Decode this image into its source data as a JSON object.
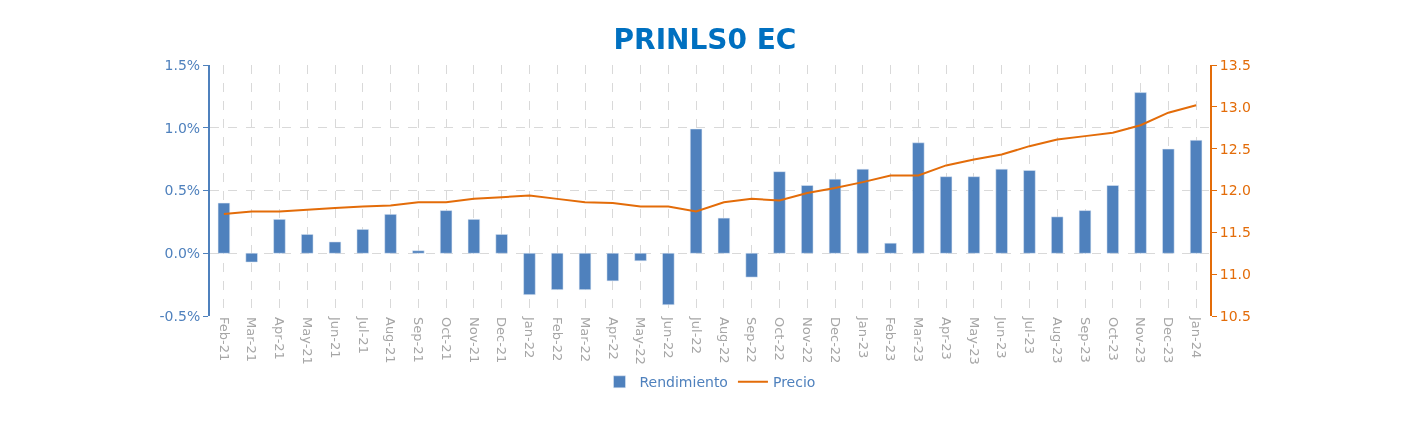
{
  "chart_data": {
    "type": "bar",
    "title": "PRINLS0 EC",
    "categories": [
      "Feb-21",
      "Mar-21",
      "Apr-21",
      "May-21",
      "Jun-21",
      "Jul-21",
      "Aug-21",
      "Sep-21",
      "Oct-21",
      "Nov-21",
      "Dec-21",
      "Jan-22",
      "Feb-22",
      "Mar-22",
      "Apr-22",
      "May-22",
      "Jun-22",
      "Jul-22",
      "Aug-22",
      "Sep-22",
      "Oct-22",
      "Nov-22",
      "Dec-22",
      "Jan-23",
      "Feb-23",
      "Mar-23",
      "Apr-23",
      "May-23",
      "Jun-23",
      "Jul-23",
      "Aug-23",
      "Sep-23",
      "Oct-23",
      "Nov-23",
      "Dec-23",
      "Jan-24"
    ],
    "series": [
      {
        "name": "Rendimiento",
        "color": "#4f81bd",
        "values": [
          0.4,
          -0.07,
          0.27,
          0.15,
          0.09,
          0.19,
          0.31,
          0.02,
          0.34,
          0.27,
          0.15,
          -0.33,
          -0.29,
          -0.29,
          -0.22,
          -0.06,
          -0.41,
          0.99,
          0.28,
          -0.19,
          0.65,
          0.54,
          0.59,
          0.67,
          0.08,
          0.88,
          0.61,
          0.61,
          0.67,
          0.66,
          0.29,
          0.34,
          0.54,
          1.28,
          0.83,
          0.9
        ]
      },
      {
        "name": "Precio",
        "type": "line",
        "axis": "y2",
        "color": "#e36c09",
        "values": [
          11.72,
          11.75,
          11.75,
          11.77,
          11.79,
          11.81,
          11.82,
          11.86,
          11.86,
          11.9,
          11.92,
          11.94,
          11.9,
          11.86,
          11.85,
          11.81,
          11.81,
          11.75,
          11.86,
          11.9,
          11.88,
          11.97,
          12.03,
          12.1,
          12.18,
          12.18,
          12.3,
          12.37,
          12.43,
          12.53,
          12.61,
          12.65,
          12.69,
          12.78,
          12.93,
          13.02
        ]
      }
    ],
    "ylim": [
      -0.5,
      1.5
    ],
    "yticks": [
      {
        "value": -0.5,
        "label": "-0.5%"
      },
      {
        "value": 0,
        "label": "0.0%"
      },
      {
        "value": 0.5,
        "label": "0.5%"
      },
      {
        "value": 1.0,
        "label": "1.0%"
      },
      {
        "value": 1.5,
        "label": "1.5%"
      }
    ],
    "y2lim": [
      10.5,
      13.5
    ],
    "y2ticks": [
      {
        "value": 10.5,
        "label": "10.5"
      },
      {
        "value": 11,
        "label": "11.0"
      },
      {
        "value": 11.5,
        "label": "11.5"
      },
      {
        "value": 12,
        "label": "12.0"
      },
      {
        "value": 12.5,
        "label": "12.5"
      },
      {
        "value": 13,
        "label": "13.0"
      },
      {
        "value": 13.5,
        "label": "13.5"
      }
    ],
    "grid": true,
    "legend": "bottom",
    "line_style": "solid",
    "marker": "none"
  }
}
